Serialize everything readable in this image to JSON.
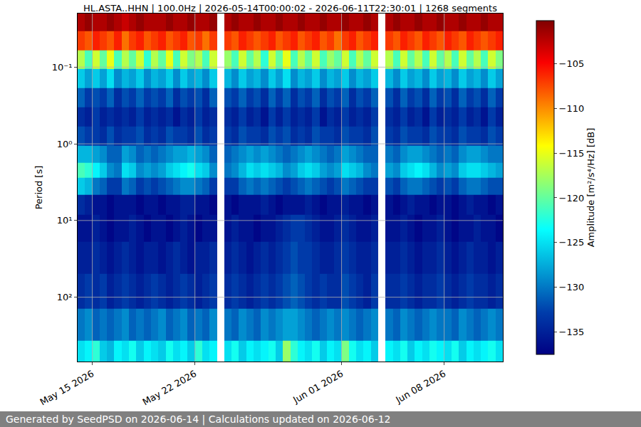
{
  "chart_data": {
    "type": "heatmap",
    "title": "HL.ASTA..HHN | 100.0Hz | 2026-05-14T00:00:02 - 2026-06-11T22:30:01 | 1268 segments",
    "ylabel": "Period [s]",
    "zlabel": "Amplitude [m²/s⁴/Hz] [dB]",
    "footer": "Generated by SeedPSD on 2026-06-14 | Calculations updated on 2026-06-12",
    "color": "Jet",
    "log": "y",
    "grid": true,
    "xlim": [
      "2026-05-14 00:00",
      "2026-06-12 00:00"
    ],
    "xticks": [
      {
        "value": "2026-05-15",
        "label": "May 15 2026"
      },
      {
        "value": "2026-05-22",
        "label": "May 22 2026"
      },
      {
        "value": "2026-06-01",
        "label": "Jun 01 2026"
      },
      {
        "value": "2026-06-08",
        "label": "Jun 08 2026"
      }
    ],
    "ylim": [
      0.02,
      690
    ],
    "yticks": [
      {
        "value": 0.1,
        "label": "10⁻¹"
      },
      {
        "value": 1,
        "label": "10⁰"
      },
      {
        "value": 10,
        "label": "10¹"
      },
      {
        "value": 100,
        "label": "10²"
      }
    ],
    "zlim": [
      -137.5,
      -100.2
    ],
    "zticks": [
      {
        "value": -105,
        "label": "−105"
      },
      {
        "value": -110,
        "label": "−110"
      },
      {
        "value": -115,
        "label": "−115"
      },
      {
        "value": -120,
        "label": "−120"
      },
      {
        "value": -125,
        "label": "−125"
      },
      {
        "value": -130,
        "label": "−130"
      },
      {
        "value": -135,
        "label": "−135"
      }
    ],
    "x": [
      "2026-05-14 06:00",
      "2026-05-14 18:00",
      "2026-05-15 06:00",
      "2026-05-15 18:00",
      "2026-05-16 06:00",
      "2026-05-16 18:00",
      "2026-05-17 06:00",
      "2026-05-17 18:00",
      "2026-05-18 06:00",
      "2026-05-18 18:00",
      "2026-05-19 06:00",
      "2026-05-19 18:00",
      "2026-05-20 06:00",
      "2026-05-20 18:00",
      "2026-05-21 06:00",
      "2026-05-21 18:00",
      "2026-05-22 06:00",
      "2026-05-22 18:00",
      "2026-05-23 06:00",
      "2026-05-23 18:00",
      "2026-05-24 06:00",
      "2026-05-24 18:00",
      "2026-05-25 06:00",
      "2026-05-25 18:00",
      "2026-05-26 06:00",
      "2026-05-26 18:00",
      "2026-05-27 06:00",
      "2026-05-27 18:00",
      "2026-05-28 06:00",
      "2026-05-28 18:00",
      "2026-05-29 06:00",
      "2026-05-29 18:00",
      "2026-05-30 06:00",
      "2026-05-30 18:00",
      "2026-05-31 06:00",
      "2026-05-31 18:00",
      "2026-06-01 06:00",
      "2026-06-01 18:00",
      "2026-06-02 06:00",
      "2026-06-02 18:00",
      "2026-06-03 06:00",
      "2026-06-03 18:00",
      "2026-06-04 06:00",
      "2026-06-04 18:00",
      "2026-06-05 06:00",
      "2026-06-05 18:00",
      "2026-06-06 06:00",
      "2026-06-06 18:00",
      "2026-06-07 06:00",
      "2026-06-07 18:00",
      "2026-06-08 06:00",
      "2026-06-08 18:00",
      "2026-06-09 06:00",
      "2026-06-09 18:00",
      "2026-06-10 06:00",
      "2026-06-10 18:00",
      "2026-06-11 06:00",
      "2026-06-11 18:00"
    ],
    "y": [
      0.025,
      0.045,
      0.08,
      0.14,
      0.25,
      0.45,
      0.8,
      1.4,
      2.2,
      3.5,
      6,
      12,
      30,
      80,
      250,
      550
    ],
    "z": [
      [
        -102,
        -101,
        -102,
        -102,
        -101,
        -102,
        -103,
        -102,
        -101,
        -102,
        -102,
        -102,
        -101,
        -102,
        -102,
        -101,
        -102,
        -102,
        -101,
        null,
        -102,
        -101,
        -102,
        -102,
        -101,
        -102,
        -102,
        -101,
        -102,
        -102,
        -101,
        -102,
        -102,
        -101,
        -102,
        -102,
        -101,
        -102,
        -102,
        -101,
        -102,
        null,
        -102,
        -101,
        -102,
        -102,
        -101,
        -102,
        -102,
        -101,
        -102,
        -102,
        -101,
        -102,
        -102,
        -101,
        -102,
        -102
      ],
      [
        -107,
        -108,
        -106,
        -107,
        -108,
        -106,
        -109,
        -107,
        -106,
        -108,
        -107,
        -106,
        -108,
        -107,
        -106,
        -108,
        -107,
        -109,
        -107,
        null,
        -107,
        -108,
        -106,
        -107,
        -108,
        -107,
        -106,
        -108,
        -107,
        -106,
        -108,
        -107,
        -106,
        -108,
        -107,
        -109,
        -107,
        -106,
        -108,
        -107,
        -106,
        null,
        -107,
        -108,
        -106,
        -107,
        -108,
        -106,
        -107,
        -108,
        -106,
        -107,
        -108,
        -106,
        -107,
        -108,
        -107,
        -106
      ],
      [
        -117,
        -121,
        -116,
        -120,
        -115,
        -121,
        -117,
        -120,
        -116,
        -122,
        -117,
        -120,
        -115,
        -121,
        -116,
        -119,
        -117,
        -121,
        -116,
        null,
        -118,
        -121,
        -116,
        -120,
        -117,
        -122,
        -116,
        -120,
        -115,
        -121,
        -117,
        -120,
        -116,
        -121,
        -118,
        -120,
        -116,
        -121,
        -117,
        -120,
        -116,
        null,
        -117,
        -121,
        -116,
        -120,
        -117,
        -121,
        -116,
        -120,
        -117,
        -121,
        -116,
        -120,
        -117,
        -121,
        -116,
        -119
      ],
      [
        -126,
        -128,
        -126,
        -128,
        -125,
        -129,
        -127,
        -128,
        -126,
        -129,
        -127,
        -128,
        -126,
        -129,
        -126,
        -128,
        -127,
        -129,
        -126,
        null,
        -127,
        -129,
        -126,
        -128,
        -127,
        -129,
        -126,
        -128,
        -125,
        -129,
        -127,
        -128,
        -126,
        -129,
        -127,
        -128,
        -126,
        -129,
        -127,
        -128,
        -126,
        null,
        -127,
        -129,
        -126,
        -128,
        -127,
        -129,
        -126,
        -128,
        -127,
        -129,
        -126,
        -128,
        -127,
        -129,
        -126,
        -128
      ],
      [
        -131,
        -133,
        -132,
        -133,
        -131,
        -134,
        -132,
        -133,
        -131,
        -133,
        -132,
        -133,
        -131,
        -134,
        -132,
        -133,
        -132,
        -134,
        -131,
        null,
        -132,
        -133,
        -131,
        -133,
        -132,
        -134,
        -131,
        -133,
        -131,
        -134,
        -132,
        -133,
        -131,
        -134,
        -132,
        -133,
        -131,
        -134,
        -132,
        -133,
        -131,
        null,
        -132,
        -134,
        -131,
        -133,
        -132,
        -134,
        -131,
        -133,
        -132,
        -134,
        -131,
        -133,
        -132,
        -134,
        -131,
        -133
      ],
      [
        -134,
        -135,
        -133,
        -135,
        -134,
        -135,
        -134,
        -135,
        -133,
        -135,
        -134,
        -135,
        -134,
        -136,
        -134,
        -135,
        -133,
        -135,
        -134,
        null,
        -134,
        -135,
        -133,
        -135,
        -134,
        -136,
        -133,
        -135,
        -133,
        -135,
        -134,
        -135,
        -133,
        -136,
        -134,
        -135,
        -133,
        -135,
        -134,
        -135,
        -133,
        null,
        -134,
        -135,
        -133,
        -135,
        -134,
        -136,
        -133,
        -135,
        -134,
        -135,
        -133,
        -135,
        -134,
        -136,
        -133,
        -135
      ],
      [
        -132,
        -133,
        -133,
        -134,
        -132,
        -134,
        -133,
        -133,
        -132,
        -134,
        -133,
        -134,
        -132,
        -133,
        -133,
        -134,
        -132,
        -134,
        -133,
        null,
        -133,
        -134,
        -132,
        -133,
        -133,
        -134,
        -132,
        -133,
        -132,
        -134,
        -133,
        -134,
        -132,
        -133,
        -133,
        -134,
        -132,
        -133,
        -133,
        -134,
        -132,
        null,
        -133,
        -134,
        -132,
        -133,
        -133,
        -134,
        -132,
        -133,
        -133,
        -134,
        -132,
        -133,
        -133,
        -134,
        -132,
        -133
      ],
      [
        -127,
        -127,
        -128,
        -129,
        -131,
        -131,
        -128,
        -129,
        -131,
        -130,
        -131,
        -130,
        -129,
        -128,
        -128,
        -127,
        -128,
        -129,
        -131,
        null,
        -131,
        -130,
        -129,
        -128,
        -129,
        -128,
        -129,
        -130,
        -131,
        -130,
        -129,
        -128,
        -129,
        -130,
        -131,
        -130,
        -128,
        -129,
        -130,
        -131,
        -131,
        null,
        -130,
        -131,
        -129,
        -128,
        -128,
        -129,
        -130,
        -131,
        -130,
        -131,
        -129,
        -128,
        -128,
        -129,
        -130,
        -130
      ],
      [
        -121,
        -122,
        -124,
        -126,
        -129,
        -130,
        -125,
        -126,
        -129,
        -128,
        -129,
        -128,
        -126,
        -125,
        -124,
        -123,
        -125,
        -126,
        -129,
        null,
        -130,
        -129,
        -127,
        -125,
        -126,
        -125,
        -126,
        -127,
        -129,
        -128,
        -126,
        -125,
        -126,
        -128,
        -129,
        -128,
        -125,
        -126,
        -127,
        -129,
        -130,
        null,
        -128,
        -129,
        -126,
        -125,
        -124,
        -125,
        -127,
        -129,
        -128,
        -129,
        -126,
        -125,
        -125,
        -126,
        -127,
        -128
      ],
      [
        -126,
        -127,
        -130,
        -131,
        -133,
        -133,
        -130,
        -131,
        -133,
        -132,
        -133,
        -132,
        -131,
        -130,
        -129,
        -129,
        -130,
        -131,
        -133,
        null,
        -133,
        -133,
        -131,
        -130,
        -131,
        -130,
        -131,
        -132,
        -133,
        -132,
        -131,
        -130,
        -131,
        -132,
        -133,
        -132,
        -130,
        -131,
        -132,
        -133,
        -133,
        null,
        -132,
        -133,
        -131,
        -130,
        -130,
        -131,
        -132,
        -133,
        -132,
        -133,
        -131,
        -130,
        -130,
        -131,
        -132,
        -132
      ],
      [
        -134,
        -135,
        -136,
        -136,
        -137,
        -136,
        -136,
        -136,
        -137,
        -136,
        -136,
        -137,
        -136,
        -136,
        -135,
        -135,
        -136,
        -136,
        -137,
        null,
        -136,
        -137,
        -136,
        -136,
        -136,
        -135,
        -136,
        -137,
        -136,
        -136,
        -136,
        -135,
        -136,
        -137,
        -136,
        -136,
        -135,
        -136,
        -136,
        -137,
        -136,
        null,
        -136,
        -137,
        -136,
        -135,
        -136,
        -136,
        -137,
        -136,
        -136,
        -137,
        -136,
        -135,
        -136,
        -136,
        -137,
        -136
      ],
      [
        -136,
        -136,
        -135,
        -136,
        -137,
        -136,
        -136,
        -135,
        -136,
        -137,
        -136,
        -136,
        -137,
        -136,
        -135,
        -136,
        -137,
        -136,
        -136,
        null,
        -136,
        -135,
        -136,
        -136,
        -137,
        -136,
        -136,
        -135,
        -134,
        -133,
        -133,
        -134,
        -135,
        -136,
        -136,
        -135,
        -134,
        -135,
        -136,
        -136,
        -135,
        null,
        -136,
        -136,
        -135,
        -136,
        -137,
        -136,
        -136,
        -135,
        -136,
        -137,
        -136,
        -136,
        -135,
        -136,
        -136,
        -137
      ],
      [
        -135,
        -135,
        -134,
        -135,
        -136,
        -135,
        -134,
        -135,
        -136,
        -135,
        -135,
        -136,
        -135,
        -134,
        -135,
        -136,
        -135,
        -135,
        -134,
        null,
        -135,
        -134,
        -135,
        -136,
        -135,
        -134,
        -135,
        -134,
        -133,
        -132,
        -133,
        -133,
        -134,
        -135,
        -135,
        -134,
        -133,
        -134,
        -135,
        -135,
        -134,
        null,
        -135,
        -135,
        -134,
        -135,
        -136,
        -135,
        -135,
        -134,
        -135,
        -136,
        -135,
        -134,
        -135,
        -135,
        -136,
        -135
      ],
      [
        -134,
        -133,
        -134,
        -133,
        -135,
        -134,
        -133,
        -134,
        -135,
        -134,
        -133,
        -134,
        -135,
        -134,
        -133,
        -134,
        -135,
        -134,
        -133,
        null,
        -134,
        -133,
        -134,
        -135,
        -134,
        -133,
        -134,
        -133,
        -132,
        -131,
        -132,
        -133,
        -134,
        -133,
        -134,
        -134,
        -132,
        -133,
        -134,
        -135,
        -133,
        null,
        -134,
        -134,
        -133,
        -134,
        -135,
        -134,
        -134,
        -133,
        -134,
        -135,
        -134,
        -133,
        -134,
        -134,
        -135,
        -134
      ],
      [
        -130,
        -129,
        -131,
        -130,
        -131,
        -130,
        -129,
        -131,
        -130,
        -131,
        -130,
        -129,
        -131,
        -130,
        -129,
        -131,
        -130,
        -131,
        -129,
        null,
        -130,
        -131,
        -129,
        -130,
        -131,
        -129,
        -130,
        -129,
        -128,
        -128,
        -129,
        -130,
        -131,
        -130,
        -129,
        -130,
        -129,
        -130,
        -131,
        -130,
        -129,
        null,
        -130,
        -131,
        -129,
        -130,
        -131,
        -130,
        -129,
        -130,
        -130,
        -131,
        -129,
        -130,
        -131,
        -130,
        -129,
        -130
      ],
      [
        -125,
        -124,
        -122,
        -126,
        -127,
        -124,
        -125,
        -123,
        -126,
        -124,
        -125,
        -126,
        -123,
        -125,
        -124,
        -126,
        -122,
        -125,
        -124,
        null,
        -125,
        -123,
        -126,
        -124,
        -125,
        -124,
        -123,
        -126,
        -118,
        -122,
        -124,
        -125,
        -123,
        -126,
        -124,
        -125,
        -119,
        -123,
        -125,
        -124,
        -126,
        null,
        -124,
        -125,
        -123,
        -126,
        -124,
        -125,
        -123,
        -124,
        -125,
        -123,
        -126,
        -124,
        -125,
        -124,
        -123,
        -125
      ]
    ]
  }
}
